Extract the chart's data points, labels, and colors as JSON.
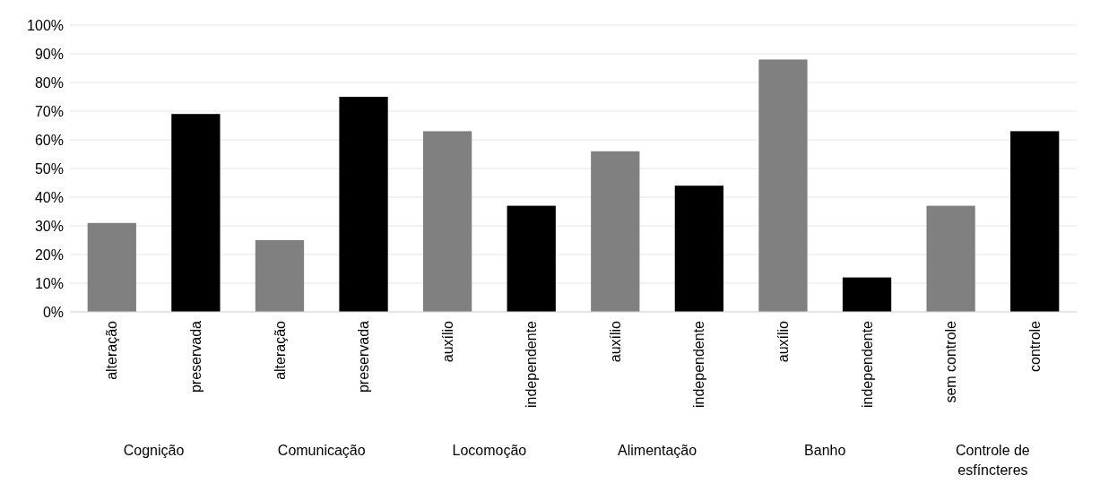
{
  "chart_data": {
    "type": "bar",
    "categories": [
      "alteração",
      "preservada",
      "alteração",
      "preservada",
      "auxílio",
      "independente",
      "auxílio",
      "independente",
      "auxílio",
      "independente",
      "sem controle",
      "controle"
    ],
    "values": [
      31,
      69,
      25,
      75,
      63,
      37,
      56,
      44,
      88,
      12,
      37,
      63
    ],
    "colors": [
      "#808080",
      "#000000",
      "#808080",
      "#000000",
      "#808080",
      "#000000",
      "#808080",
      "#000000",
      "#808080",
      "#000000",
      "#808080",
      "#000000"
    ],
    "ylim": [
      0,
      100
    ],
    "yticks": [
      {
        "value": 0,
        "label": "0%"
      },
      {
        "value": 10,
        "label": "10%"
      },
      {
        "value": 20,
        "label": "20%"
      },
      {
        "value": 30,
        "label": "30%"
      },
      {
        "value": 40,
        "label": "40%"
      },
      {
        "value": 50,
        "label": "50%"
      },
      {
        "value": 60,
        "label": "60%"
      },
      {
        "value": 70,
        "label": "70%"
      },
      {
        "value": 80,
        "label": "80%"
      },
      {
        "value": 90,
        "label": "90%"
      },
      {
        "value": 100,
        "label": "100%"
      }
    ],
    "grid": "y",
    "annotations": [
      "Cognição",
      "Comunicação",
      "Locomoção",
      "Alimentação",
      "Banho",
      "Controle de esfíncteres"
    ]
  }
}
